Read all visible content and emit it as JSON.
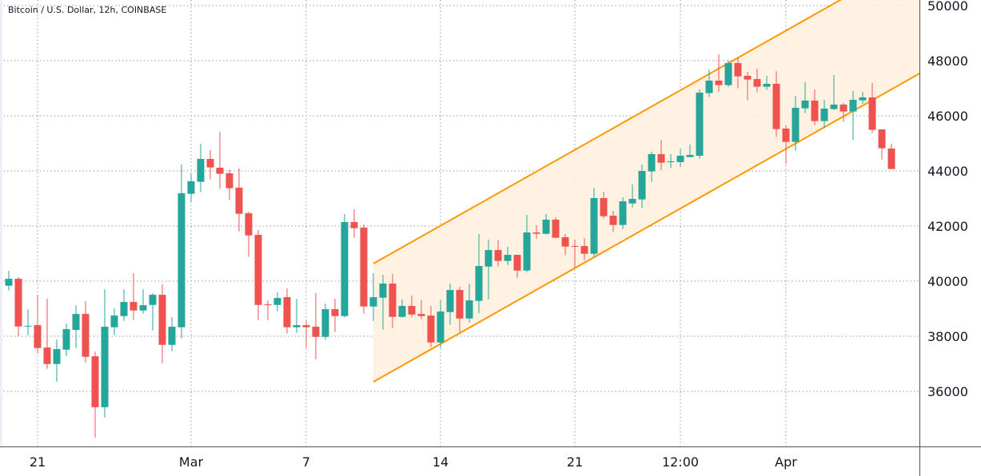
{
  "header": {
    "title": "Bitcoin / U.S. Dollar, 12h, COINBASE"
  },
  "colors": {
    "up": "#26a69a",
    "down": "#ef5350",
    "channel_line": "#ff9800",
    "channel_fill": "#fff1e0",
    "grid": "#9598a1",
    "axis": "#50535e",
    "text": "#131722"
  },
  "chart_data": {
    "type": "candlestick",
    "title": "Bitcoin / U.S. Dollar, 12h, COINBASE",
    "ylim": [
      34000,
      50000
    ],
    "grid": true,
    "y_ticks": [
      36000,
      38000,
      40000,
      42000,
      44000,
      46000,
      48000,
      50000
    ],
    "y_tick_labels": [
      "36000",
      "38000",
      "40000",
      "42000",
      "44000",
      "46000",
      "48000",
      "50000"
    ],
    "x_ticks": [
      {
        "t": "02-21 00:00",
        "label": "21"
      },
      {
        "t": "03-01 00:00",
        "label": "Mar"
      },
      {
        "t": "03-07 00:00",
        "label": "7"
      },
      {
        "t": "03-14 00:00",
        "label": "14"
      },
      {
        "t": "03-21 00:00",
        "label": "21"
      },
      {
        "t": "03-26 12:00",
        "label": "12:00"
      },
      {
        "t": "04-01 00:00",
        "label": "Apr"
      }
    ],
    "columns": [
      "t",
      "open",
      "high",
      "low",
      "close"
    ],
    "candles": [
      [
        "02-19 12:00",
        39834,
        40375,
        39660,
        40085
      ],
      [
        "02-20 00:00",
        40085,
        40143,
        38006,
        38354
      ],
      [
        "02-20 12:00",
        38370,
        38983,
        38035,
        38380
      ],
      [
        "02-21 00:00",
        38403,
        39505,
        37368,
        37571
      ],
      [
        "02-21 12:00",
        37590,
        39360,
        36818,
        36992
      ],
      [
        "02-22 00:00",
        36992,
        37881,
        36353,
        37533
      ],
      [
        "02-22 12:00",
        37513,
        38461,
        37282,
        38258
      ],
      [
        "02-23 00:00",
        38229,
        39128,
        37571,
        38809
      ],
      [
        "02-23 12:00",
        38809,
        39273,
        37049,
        37252
      ],
      [
        "02-24 00:00",
        37272,
        37446,
        34323,
        35425
      ],
      [
        "02-24 12:00",
        35425,
        39708,
        35048,
        38345
      ],
      [
        "02-25 00:00",
        38326,
        39012,
        38035,
        38751
      ],
      [
        "02-25 12:00",
        38732,
        39708,
        38557,
        39244
      ],
      [
        "02-26 00:00",
        39244,
        40288,
        38586,
        38935
      ],
      [
        "02-26 12:00",
        38935,
        39708,
        38818,
        39128
      ],
      [
        "02-27 00:00",
        39137,
        39563,
        38209,
        39505
      ],
      [
        "02-27 12:00",
        39505,
        39882,
        37020,
        37687
      ],
      [
        "02-28 00:00",
        37687,
        38693,
        37456,
        38345
      ],
      [
        "02-28 12:00",
        38326,
        44232,
        37919,
        43188
      ],
      [
        "03-01 00:00",
        43169,
        43884,
        42850,
        43623
      ],
      [
        "03-01 12:00",
        43604,
        44986,
        43227,
        44435
      ],
      [
        "03-02 00:00",
        44435,
        44754,
        43691,
        44126
      ],
      [
        "03-02 12:00",
        44116,
        45421,
        43343,
        43894
      ],
      [
        "03-03 00:00",
        43913,
        44058,
        42937,
        43372
      ],
      [
        "03-03 12:00",
        43391,
        44087,
        41806,
        42444
      ],
      [
        "03-04 00:00",
        42463,
        42521,
        40877,
        41660
      ],
      [
        "03-04 12:00",
        41680,
        41854,
        38586,
        39137
      ],
      [
        "03-05 00:00",
        39157,
        39302,
        38586,
        39137
      ],
      [
        "03-05 12:00",
        39137,
        39592,
        38905,
        39389
      ],
      [
        "03-06 00:00",
        39418,
        39737,
        38094,
        38326
      ],
      [
        "03-06 12:00",
        38326,
        39360,
        38123,
        38403
      ],
      [
        "03-07 00:00",
        38403,
        38548,
        37571,
        38326
      ],
      [
        "03-07 12:00",
        38345,
        39563,
        37165,
        37977
      ],
      [
        "03-08 00:00",
        37977,
        39186,
        37861,
        38983
      ],
      [
        "03-08 12:00",
        38983,
        39360,
        38152,
        38732
      ],
      [
        "03-09 00:00",
        38732,
        42434,
        38673,
        42144
      ],
      [
        "03-09 12:00",
        42144,
        42608,
        41574,
        41922
      ],
      [
        "03-10 00:00",
        41941,
        42057,
        38818,
        39080
      ],
      [
        "03-10 12:00",
        39080,
        40288,
        38557,
        39418
      ],
      [
        "03-11 00:00",
        39399,
        40230,
        38238,
        39911
      ],
      [
        "03-11 12:00",
        39911,
        40259,
        38296,
        38703
      ],
      [
        "03-12 00:00",
        38703,
        39331,
        38674,
        39099
      ],
      [
        "03-12 12:00",
        39099,
        39476,
        38703,
        38789
      ],
      [
        "03-13 00:00",
        38809,
        39302,
        38616,
        38732
      ],
      [
        "03-13 12:00",
        38751,
        39099,
        37600,
        37774
      ],
      [
        "03-14 00:00",
        37774,
        39321,
        37571,
        38896
      ],
      [
        "03-14 12:00",
        38876,
        39911,
        38412,
        39679
      ],
      [
        "03-15 00:00",
        39679,
        39795,
        38152,
        38644
      ],
      [
        "03-15 12:00",
        38644,
        39911,
        38500,
        39302
      ],
      [
        "03-16 00:00",
        39283,
        41709,
        38848,
        40549
      ],
      [
        "03-16 12:00",
        40529,
        41506,
        39341,
        41129
      ],
      [
        "03-17 00:00",
        41129,
        41477,
        40529,
        40733
      ],
      [
        "03-17 12:00",
        40733,
        41245,
        40577,
        40955
      ],
      [
        "03-18 00:00",
        40955,
        40955,
        40123,
        40384
      ],
      [
        "03-18 12:00",
        40384,
        42405,
        40326,
        41767
      ],
      [
        "03-19 00:00",
        41767,
        42028,
        41545,
        41718
      ],
      [
        "03-19 12:00",
        41718,
        42434,
        41690,
        42231
      ],
      [
        "03-20 00:00",
        42231,
        42318,
        41574,
        41574
      ],
      [
        "03-20 12:00",
        41593,
        41709,
        40935,
        41255
      ],
      [
        "03-21 00:00",
        41274,
        41506,
        40491,
        41255
      ],
      [
        "03-21 12:00",
        41274,
        41564,
        40761,
        40993
      ],
      [
        "03-22 00:00",
        40993,
        43391,
        40877,
        43014
      ],
      [
        "03-22 12:00",
        43014,
        43246,
        42270,
        42357
      ],
      [
        "03-23 00:00",
        42376,
        42550,
        41777,
        42038
      ],
      [
        "03-23 12:00",
        42038,
        43043,
        41893,
        42898
      ],
      [
        "03-24 00:00",
        42821,
        43507,
        42676,
        42985
      ],
      [
        "03-24 12:00",
        42966,
        44232,
        42647,
        43999
      ],
      [
        "03-25 00:00",
        43981,
        44696,
        43604,
        44609
      ],
      [
        "03-25 12:00",
        44609,
        45131,
        44029,
        44300
      ],
      [
        "03-26 00:00",
        44329,
        44609,
        44097,
        44348
      ],
      [
        "03-26 12:00",
        44319,
        44812,
        44145,
        44551
      ],
      [
        "03-27 00:00",
        44502,
        44957,
        44500,
        44580
      ],
      [
        "03-27 12:00",
        44551,
        46958,
        44445,
        46842
      ],
      [
        "03-28 00:00",
        46823,
        47683,
        46678,
        47277
      ],
      [
        "03-28 12:00",
        47277,
        48234,
        46881,
        47113
      ],
      [
        "03-29 00:00",
        47113,
        48002,
        47055,
        47915
      ],
      [
        "03-29 12:00",
        47915,
        48118,
        46997,
        47432
      ],
      [
        "03-30 00:00",
        47451,
        47596,
        46562,
        47316
      ],
      [
        "03-30 12:00",
        47335,
        47712,
        46852,
        47055
      ],
      [
        "03-31 00:00",
        47055,
        47451,
        46938,
        47161
      ],
      [
        "03-31 12:00",
        47161,
        47625,
        45228,
        45518
      ],
      [
        "04-01 00:00",
        45537,
        45663,
        44242,
        45054
      ],
      [
        "04-01 12:00",
        45054,
        46726,
        44735,
        46291
      ],
      [
        "04-02 00:00",
        46272,
        47219,
        46098,
        46552
      ],
      [
        "04-02 12:00",
        46552,
        46958,
        45663,
        45808
      ],
      [
        "04-03 00:00",
        45808,
        46581,
        45547,
        46262
      ],
      [
        "04-03 12:00",
        46243,
        47480,
        46214,
        46407
      ],
      [
        "04-04 00:00",
        46407,
        46465,
        45779,
        46156
      ],
      [
        "04-04 12:00",
        46156,
        46900,
        45131,
        46581
      ],
      [
        "04-05 00:00",
        46562,
        46871,
        46436,
        46668
      ],
      [
        "04-05 12:00",
        46668,
        47190,
        45373,
        45489
      ],
      [
        "04-06 00:00",
        45508,
        45508,
        44416,
        44822
      ],
      [
        "04-06 12:00",
        44812,
        44986,
        44068,
        44068
      ]
    ],
    "channel": {
      "upper": [
        [
          "03-10 12:00",
          40636
        ],
        [
          "04-08 00:00",
          51842
        ]
      ],
      "lower": [
        [
          "03-10 12:00",
          36344
        ],
        [
          "04-08 00:00",
          47550
        ]
      ]
    }
  }
}
